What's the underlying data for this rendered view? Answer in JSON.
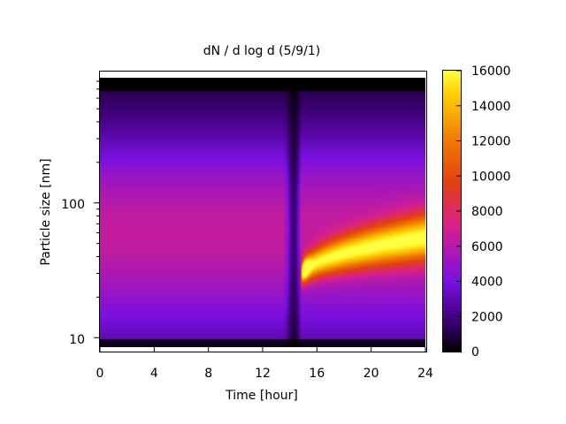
{
  "chart_data": {
    "type": "heatmap",
    "title": "dN / d log d (5/9/1)",
    "xlabel": "Time [hour]",
    "ylabel": "Particle size [nm]",
    "xlim": [
      0,
      24
    ],
    "x_ticks": [
      0,
      4,
      8,
      12,
      16,
      20,
      24
    ],
    "y_scale": "log",
    "ylim_nm": [
      8.5,
      850
    ],
    "y_tick_labels": [
      "10",
      "100"
    ],
    "colorbar": {
      "min": 0,
      "max": 16000,
      "ticks": [
        0,
        2000,
        4000,
        6000,
        8000,
        10000,
        12000,
        14000,
        16000
      ],
      "palette": [
        "#000000",
        "#3a0070",
        "#7a10e0",
        "#d9208a",
        "#e24010",
        "#f07a00",
        "#ffd000",
        "#ffff40"
      ]
    },
    "features": {
      "background_mode": {
        "hours": [
          0,
          14.3
        ],
        "size_nm": [
          25,
          90
        ],
        "peak_value": 5500
      },
      "pre_event_dip": {
        "hours": [
          13.5,
          14.8
        ],
        "value": 300
      },
      "growth_event": {
        "start_hour": 14.8,
        "start_size_nm": 28,
        "end_hour": 24,
        "end_size_nm": 55,
        "peak_value": 15500,
        "sustained_value": 10000
      }
    },
    "grid": false,
    "legend": "none"
  }
}
